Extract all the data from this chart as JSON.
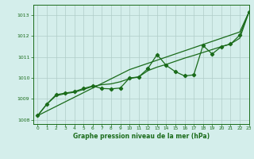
{
  "title": "Graphe pression niveau de la mer (hPa)",
  "background_color": "#d4eeeb",
  "grid_color": "#b0ccc8",
  "line_color": "#1a6b1a",
  "xlim": [
    -0.5,
    23
  ],
  "ylim": [
    1007.8,
    1013.5
  ],
  "yticks": [
    1008,
    1009,
    1010,
    1011,
    1012,
    1013
  ],
  "xticks": [
    0,
    1,
    2,
    3,
    4,
    5,
    6,
    7,
    8,
    9,
    10,
    11,
    12,
    13,
    14,
    15,
    16,
    17,
    18,
    19,
    20,
    21,
    22,
    23
  ],
  "series_jagged": [
    1008.2,
    1008.75,
    1009.2,
    1009.28,
    1009.35,
    1009.5,
    1009.62,
    1009.5,
    1009.48,
    1009.52,
    1010.0,
    1010.05,
    1010.45,
    1011.12,
    1010.6,
    1010.3,
    1010.1,
    1010.15,
    1011.55,
    1011.15,
    1011.5,
    1011.62,
    1012.05,
    1013.15
  ],
  "series_smooth": [
    1008.2,
    1008.75,
    1009.15,
    1009.25,
    1009.32,
    1009.45,
    1009.6,
    1009.68,
    1009.72,
    1009.82,
    1009.97,
    1010.05,
    1010.35,
    1010.52,
    1010.65,
    1010.8,
    1010.95,
    1011.08,
    1011.22,
    1011.36,
    1011.5,
    1011.63,
    1011.9,
    1013.15
  ],
  "series_linear": [
    1008.2,
    1008.42,
    1008.64,
    1008.86,
    1009.08,
    1009.3,
    1009.52,
    1009.74,
    1009.96,
    1010.18,
    1010.4,
    1010.55,
    1010.7,
    1010.85,
    1011.0,
    1011.15,
    1011.3,
    1011.45,
    1011.6,
    1011.75,
    1011.9,
    1012.05,
    1012.2,
    1013.15
  ]
}
